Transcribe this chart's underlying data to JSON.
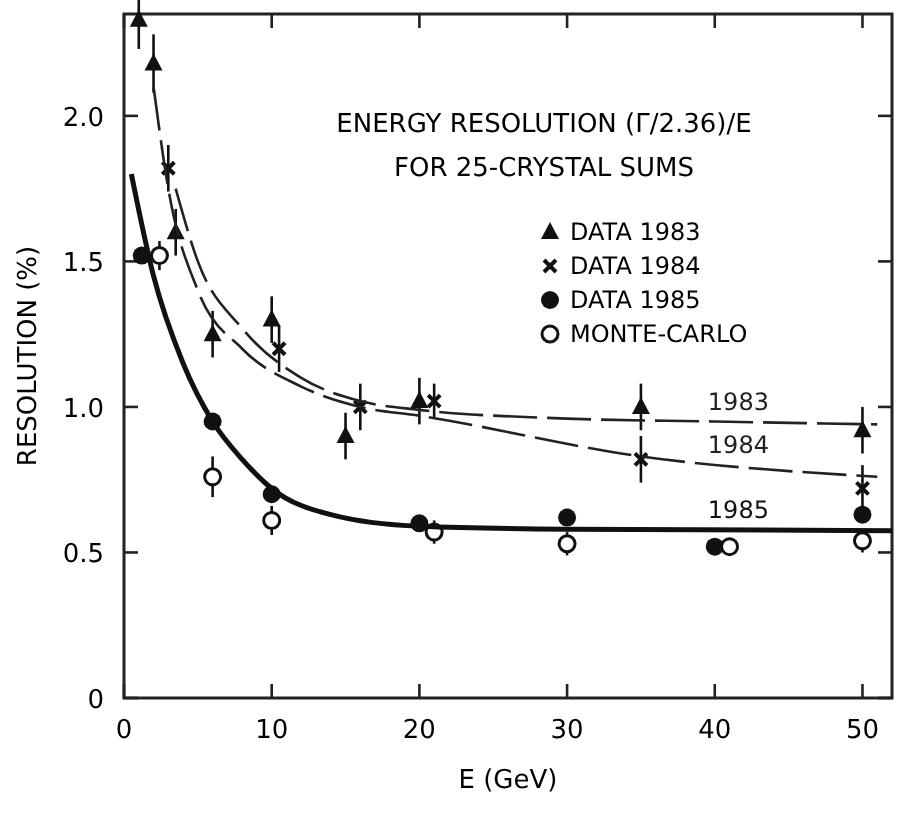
{
  "chart_data": {
    "type": "scatter",
    "title": "ENERGY RESOLUTION (Γ/2.36)/E",
    "subtitle": "FOR 25-CRYSTAL SUMS",
    "xlabel": "E (GeV)",
    "ylabel": "RESOLUTION (%)",
    "xlim": [
      0,
      52
    ],
    "ylim": [
      0,
      2.35
    ],
    "xticks": [
      0,
      10,
      20,
      30,
      40,
      50
    ],
    "yticks": [
      0,
      {
        "value": 0.5,
        "label": "0.5"
      },
      {
        "value": 1,
        "label": "1.0"
      },
      {
        "value": 1.5,
        "label": "1.5"
      },
      {
        "value": 2,
        "label": "2.0"
      }
    ],
    "grid": false,
    "legend": "top right",
    "series": [
      {
        "name": "DATA 1983",
        "marker": "triangle",
        "color": "#111111",
        "x": [
          1,
          2,
          3.5,
          6,
          10,
          15,
          20,
          35,
          50
        ],
        "values": [
          2.33,
          2.18,
          1.6,
          1.25,
          1.3,
          0.9,
          1.02,
          1.0,
          0.92
        ],
        "errors": [
          0.1,
          0.1,
          0.08,
          0.08,
          0.08,
          0.08,
          0.08,
          0.08,
          0.08
        ]
      },
      {
        "name": "DATA 1984",
        "marker": "cross",
        "color": "#111111",
        "x": [
          3,
          10.5,
          16,
          21,
          35,
          50
        ],
        "values": [
          1.82,
          1.2,
          1.0,
          1.02,
          0.82,
          0.72
        ],
        "errors": [
          0.08,
          0.08,
          0.08,
          0.06,
          0.08,
          0.08
        ]
      },
      {
        "name": "DATA 1985",
        "marker": "circle",
        "color": "#111111",
        "x": [
          1.2,
          6,
          10,
          20,
          30,
          40,
          50
        ],
        "values": [
          1.52,
          0.95,
          0.7,
          0.6,
          0.62,
          0.52,
          0.63
        ]
      },
      {
        "name": "MONTE-CARLO",
        "marker": "circle_open",
        "color": "#111111",
        "x": [
          2.4,
          6,
          10,
          21,
          30,
          41,
          50
        ],
        "values": [
          1.52,
          0.76,
          0.61,
          0.57,
          0.53,
          0.52,
          0.54
        ],
        "errors": [
          0.05,
          0.07,
          0.05,
          0.04,
          0.04,
          0.03,
          0.04
        ]
      },
      {
        "name": "1983",
        "type": "line",
        "line_style": "dashed",
        "color": "#222222",
        "x": [
          3.5,
          5,
          8,
          12,
          16,
          20,
          30,
          40,
          51
        ],
        "values": [
          1.75,
          1.5,
          1.27,
          1.1,
          1.02,
          0.99,
          0.96,
          0.95,
          0.94
        ]
      },
      {
        "name": "1984",
        "type": "line",
        "line_style": "dashed",
        "color": "#222222",
        "x": [
          2,
          3,
          5,
          8,
          12,
          16,
          20,
          35,
          51
        ],
        "values": [
          2.1,
          1.75,
          1.4,
          1.2,
          1.07,
          1.0,
          0.97,
          0.83,
          0.76
        ]
      },
      {
        "name": "1985",
        "type": "line",
        "line_style": "solid",
        "color": "#111111",
        "x": [
          0.5,
          2,
          4,
          6,
          8,
          10,
          14,
          20,
          30,
          52
        ],
        "values": [
          1.8,
          1.45,
          1.15,
          0.95,
          0.82,
          0.72,
          0.63,
          0.59,
          0.58,
          0.575
        ]
      }
    ]
  }
}
